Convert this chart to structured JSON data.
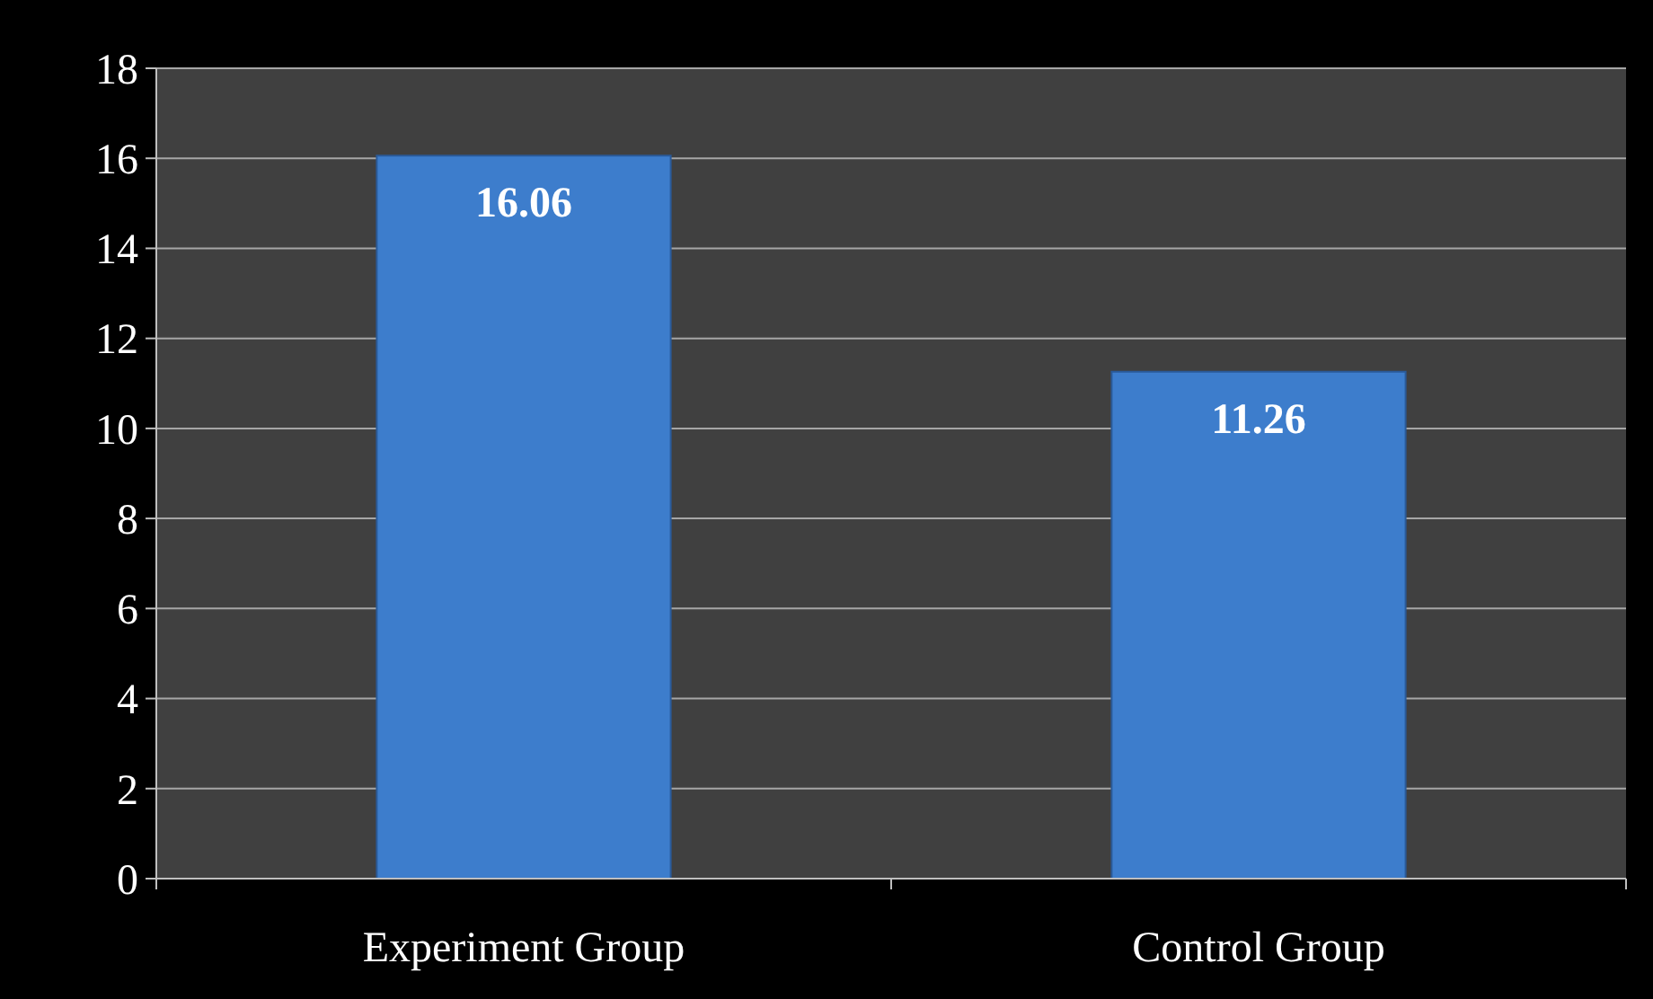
{
  "chart_data": {
    "type": "bar",
    "categories": [
      "Experiment Group",
      "Control Group"
    ],
    "values": [
      16.06,
      11.26
    ],
    "color": "#3d7dcc",
    "ylim": [
      0,
      18
    ],
    "yticks": [
      0,
      2,
      4,
      6,
      8,
      10,
      12,
      14,
      16,
      18
    ],
    "grid": "y",
    "data_labels": true
  }
}
